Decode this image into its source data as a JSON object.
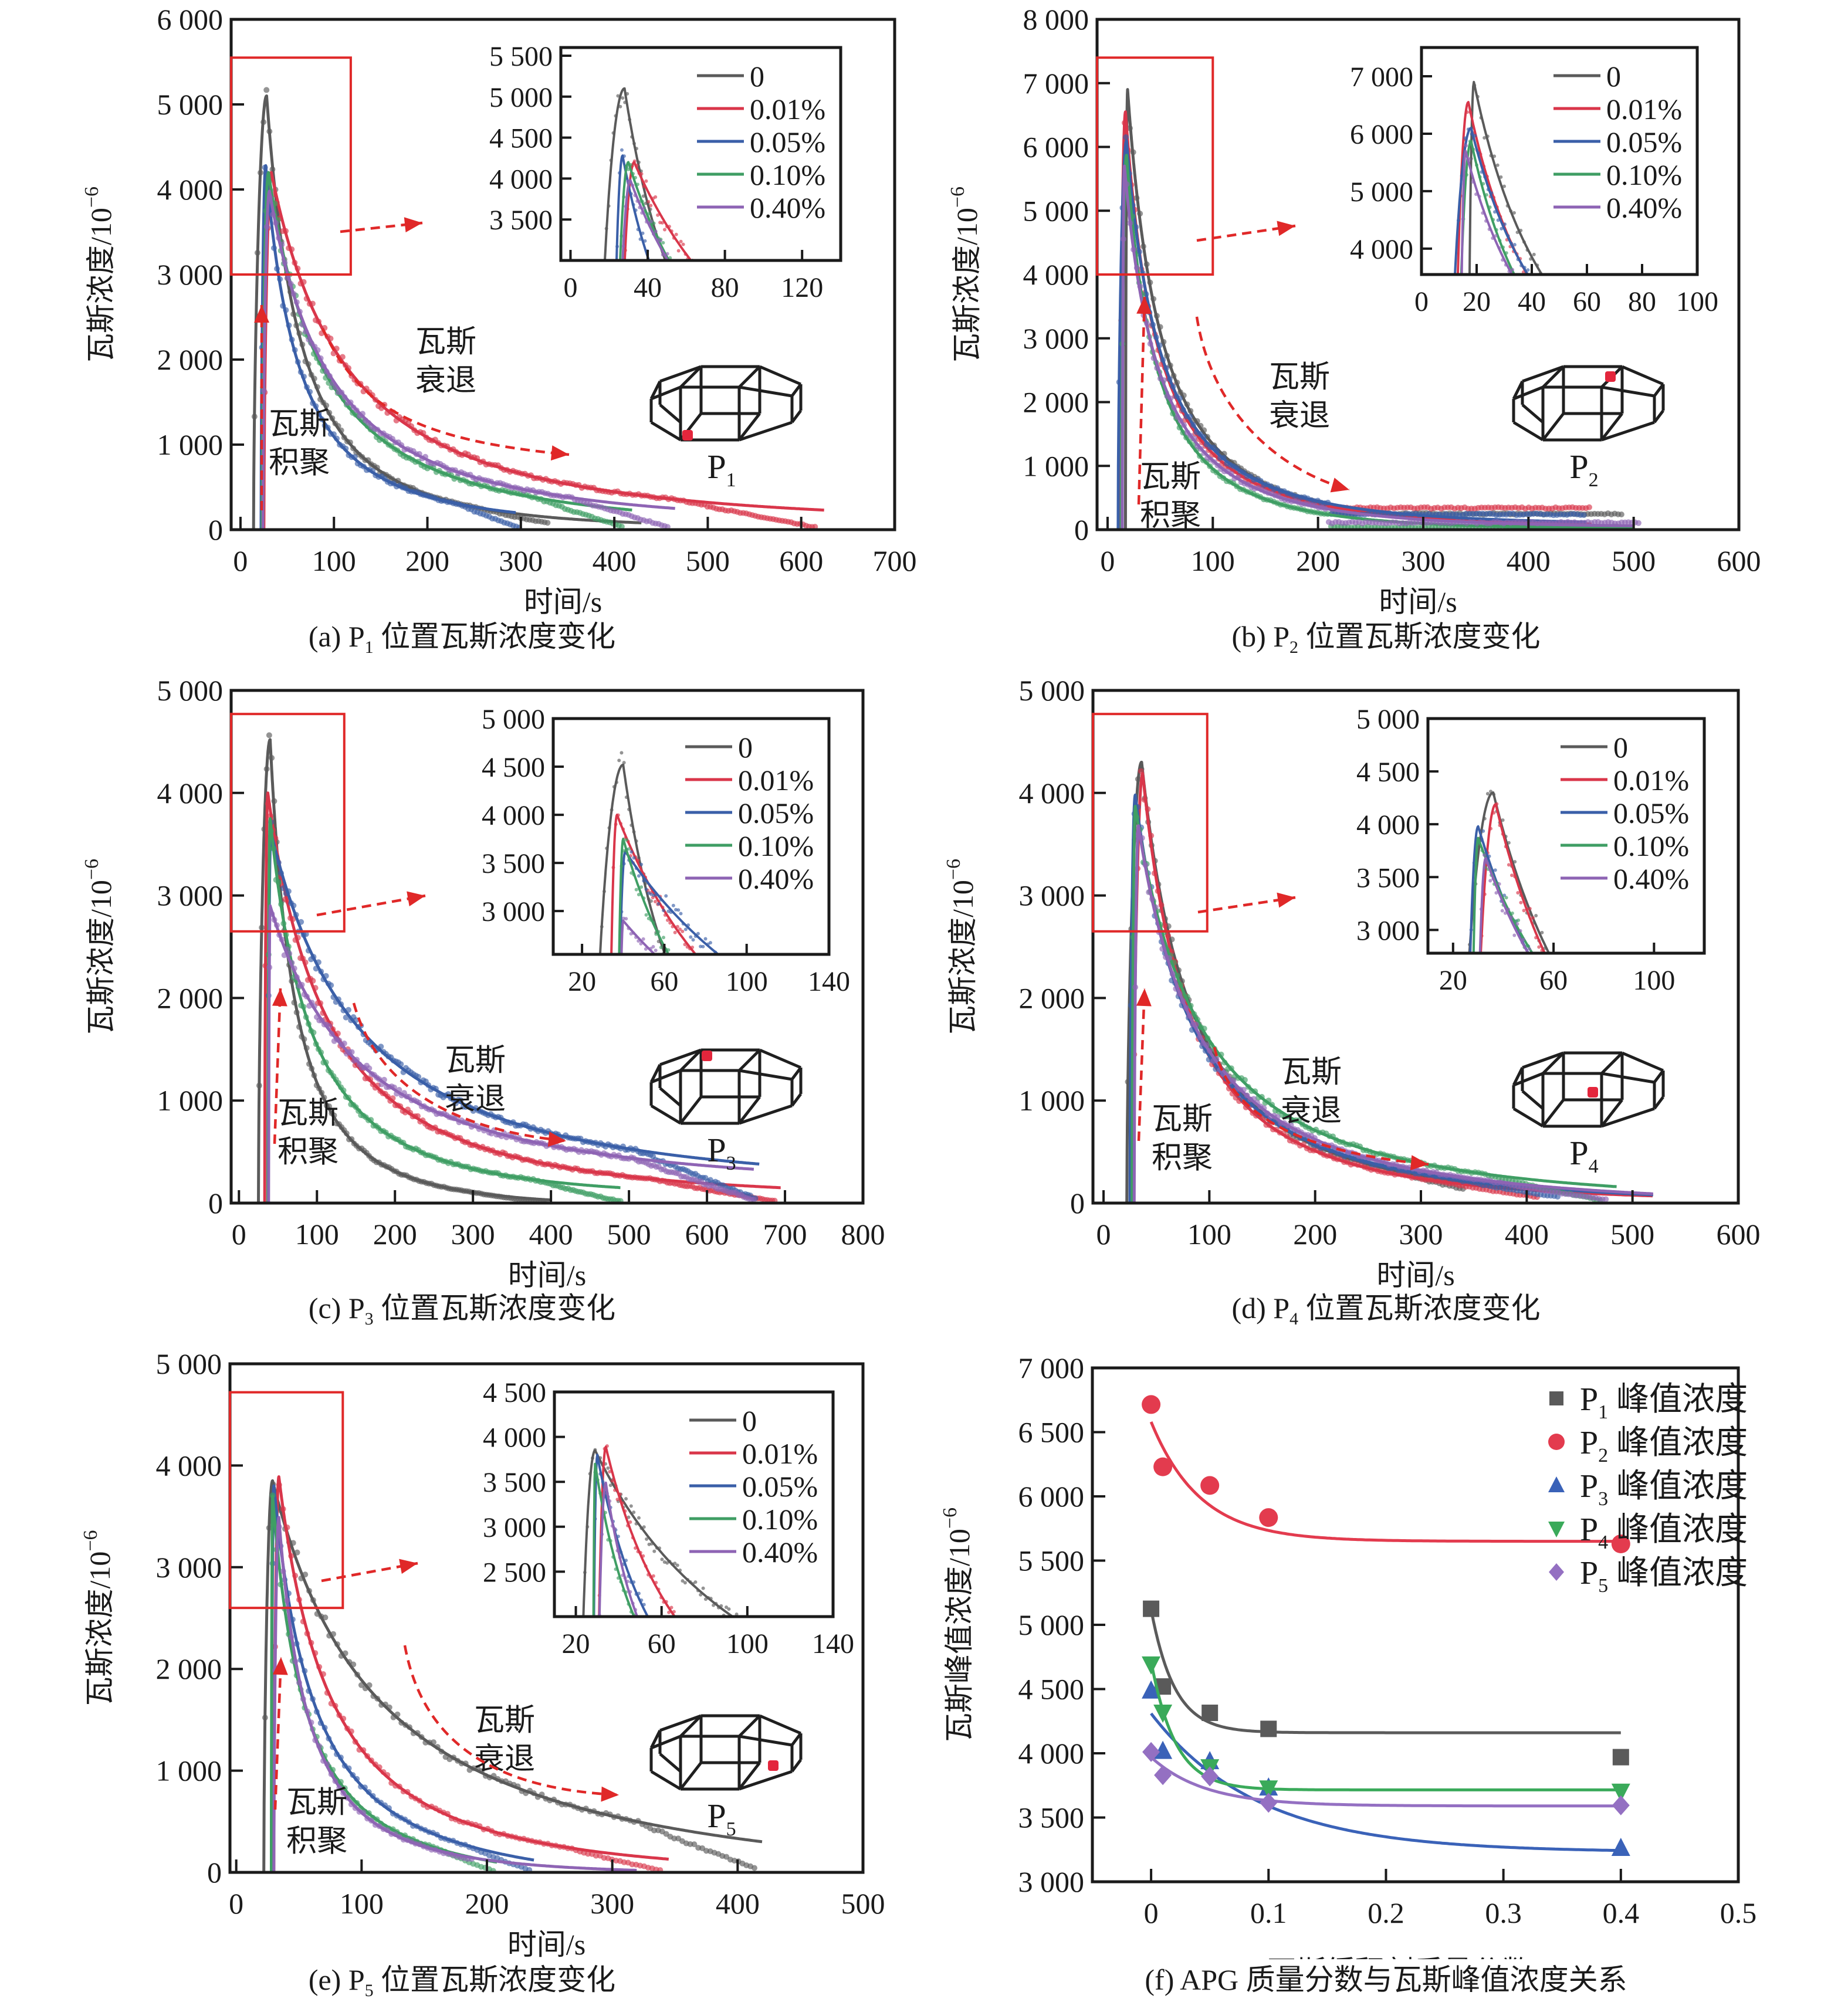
{
  "figure": {
    "panel_order": [
      "a",
      "b",
      "c",
      "d",
      "e",
      "f"
    ]
  },
  "colors": {
    "0": "#5a5a5a",
    "0.01%": "#d9364a",
    "0.05%": "#3a5fa8",
    "0.10%": "#3f9e64",
    "0.40%": "#8e64b4",
    "zoom_box": "#e02828",
    "arrow": "#e02828",
    "axis": "#1a1a1a"
  },
  "chart_data": [
    {
      "id": "a",
      "type": "line",
      "caption_prefix": "(a) P",
      "caption_sub": "1",
      "caption_suffix": " 位置瓦斯浓度变化",
      "xlabel": "时间/s",
      "ylabel": "瓦斯浓度/10⁻⁶",
      "xlim": [
        -10,
        700
      ],
      "ylim": [
        0,
        6000
      ],
      "xticks": [
        0,
        100,
        200,
        300,
        400,
        500,
        600,
        700
      ],
      "yticks": [
        0,
        1000,
        2000,
        3000,
        4000,
        5000,
        6000
      ],
      "ytick_labels": [
        "0",
        "1 000",
        "2 000",
        "3 000",
        "4 000",
        "5 000",
        "6 000"
      ],
      "zoom_box": {
        "x": [
          -10,
          118
        ],
        "y": [
          3000,
          5550
        ]
      },
      "annotations": {
        "accumulate": [
          "瓦斯",
          "积聚"
        ],
        "decay": [
          "瓦斯",
          "衰退"
        ]
      },
      "location_label": "P",
      "location_sub": "1",
      "location_point": "bottom-front-left",
      "series": [
        {
          "name": "0",
          "start": 14,
          "peak_t": 28,
          "peak": 5100,
          "end_t": 430,
          "end": 80,
          "k": 0.0155,
          "data_end_t": 330
        },
        {
          "name": "0.01%",
          "start": 25,
          "peak_t": 33,
          "peak": 4200,
          "end_t": 625,
          "end": 230,
          "k": 0.0068,
          "data_end_t": 615
        },
        {
          "name": "0.05%",
          "start": 22,
          "peak_t": 27,
          "peak": 4280,
          "end_t": 295,
          "end": 200,
          "k": 0.0155,
          "data_end_t": 300
        },
        {
          "name": "0.10%",
          "start": 23,
          "peak_t": 30,
          "peak": 4200,
          "end_t": 420,
          "end": 230,
          "k": 0.0095,
          "data_end_t": 410
        },
        {
          "name": "0.40%",
          "start": 24,
          "peak_t": 31,
          "peak": 3980,
          "end_t": 465,
          "end": 250,
          "k": 0.0085,
          "data_end_t": 460
        }
      ],
      "inset": {
        "xlim": [
          -5,
          140
        ],
        "ylim": [
          3000,
          5600
        ],
        "xticks": [
          0,
          40,
          80,
          120
        ],
        "yticks": [
          3500,
          4000,
          4500,
          5000,
          5500
        ],
        "ytick_labels": [
          "3 500",
          "4 000",
          "4 500",
          "5 000",
          "5 500"
        ],
        "legend": [
          "0",
          "0.01%",
          "0.05%",
          "0.10%",
          "0.40%"
        ]
      }
    },
    {
      "id": "b",
      "type": "line",
      "caption_prefix": "(b) P",
      "caption_sub": "2",
      "caption_suffix": " 位置瓦斯浓度变化",
      "xlabel": "时间/s",
      "ylabel": "瓦斯浓度/10⁻⁶",
      "xlim": [
        -10,
        600
      ],
      "ylim": [
        0,
        8000
      ],
      "xticks": [
        0,
        100,
        200,
        300,
        400,
        500,
        600
      ],
      "yticks": [
        0,
        1000,
        2000,
        3000,
        4000,
        5000,
        6000,
        7000,
        8000
      ],
      "ytick_labels": [
        "0",
        "1 000",
        "2 000",
        "3 000",
        "4 000",
        "5 000",
        "6 000",
        "7 000",
        "8 000"
      ],
      "zoom_box": {
        "x": [
          -10,
          100
        ],
        "y": [
          4000,
          7400
        ]
      },
      "annotations": {
        "accumulate": [
          "瓦斯",
          "积聚"
        ],
        "decay": [
          "瓦斯",
          "衰退"
        ]
      },
      "location_label": "P",
      "location_sub": "2",
      "location_point": "top-center",
      "series": [
        {
          "name": "0",
          "start": 17,
          "peak_t": 19,
          "peak": 6900,
          "end_t": 490,
          "end": 30,
          "k": 0.0175,
          "data_end_t": 490,
          "plateau": 250
        },
        {
          "name": "0.01%",
          "start": 12,
          "peak_t": 17,
          "peak": 6550,
          "end_t": 460,
          "end": 90,
          "k": 0.0185,
          "data_end_t": 460,
          "plateau": 340
        },
        {
          "name": "0.05%",
          "start": 10,
          "peak_t": 18,
          "peak": 6100,
          "end_t": 455,
          "end": 120,
          "k": 0.0165,
          "data_end_t": 455,
          "plateau": 240
        },
        {
          "name": "0.10%",
          "start": 13,
          "peak_t": 18,
          "peak": 5870,
          "end_t": 500,
          "end": 20,
          "k": 0.0195,
          "data_end_t": 500,
          "plateau": 40
        },
        {
          "name": "0.40%",
          "start": 14,
          "peak_t": 16,
          "peak": 5700,
          "end_t": 500,
          "end": 60,
          "k": 0.017,
          "data_end_t": 505,
          "plateau": 110
        }
      ],
      "inset": {
        "xlim": [
          0,
          100
        ],
        "ylim": [
          3550,
          7500
        ],
        "xticks": [
          0,
          20,
          40,
          60,
          80,
          100
        ],
        "yticks": [
          4000,
          5000,
          6000,
          7000
        ],
        "ytick_labels": [
          "4 000",
          "5 000",
          "6 000",
          "7 000"
        ],
        "legend": [
          "0",
          "0.01%",
          "0.05%",
          "0.10%",
          "0.40%"
        ]
      }
    },
    {
      "id": "c",
      "type": "line",
      "caption_prefix": "(c) P",
      "caption_sub": "3",
      "caption_suffix": " 位置瓦斯浓度变化",
      "xlabel": "时间/s",
      "ylabel": "瓦斯浓度/10⁻⁶",
      "xlim": [
        -10,
        800
      ],
      "ylim": [
        0,
        5000
      ],
      "xticks": [
        0,
        100,
        200,
        300,
        400,
        500,
        600,
        700,
        800
      ],
      "yticks": [
        0,
        1000,
        2000,
        3000,
        4000,
        5000
      ],
      "ytick_labels": [
        "0",
        "1 000",
        "2 000",
        "3 000",
        "4 000",
        "5 000"
      ],
      "zoom_box": {
        "x": [
          -10,
          135
        ],
        "y": [
          2650,
          4770
        ]
      },
      "annotations": {
        "accumulate": [
          "瓦斯",
          "积聚"
        ],
        "decay": [
          "瓦斯",
          "衰退"
        ]
      },
      "location_label": "P",
      "location_sub": "3",
      "location_point": "top-back-left",
      "series": [
        {
          "name": "0",
          "start": 25,
          "peak_t": 40,
          "peak": 4520,
          "end_t": 400,
          "end": 30,
          "k": 0.0175,
          "data_end_t": 395
        },
        {
          "name": "0.01%",
          "start": 33,
          "peak_t": 37,
          "peak": 4000,
          "end_t": 695,
          "end": 150,
          "k": 0.0072,
          "data_end_t": 690
        },
        {
          "name": "0.05%",
          "start": 37,
          "peak_t": 41,
          "peak": 3620,
          "end_t": 668,
          "end": 380,
          "k": 0.0048,
          "data_end_t": 665
        },
        {
          "name": "0.10%",
          "start": 37,
          "peak_t": 40,
          "peak": 3750,
          "end_t": 490,
          "end": 150,
          "k": 0.0105,
          "data_end_t": 490
        },
        {
          "name": "0.40%",
          "start": 38,
          "peak_t": 40,
          "peak": 2900,
          "end_t": 660,
          "end": 330,
          "k": 0.0048,
          "data_end_t": 660
        }
      ],
      "inset": {
        "xlim": [
          6,
          140
        ],
        "ylim": [
          2550,
          5000
        ],
        "xticks": [
          20,
          60,
          100,
          140
        ],
        "yticks": [
          3000,
          3500,
          4000,
          4500,
          5000
        ],
        "ytick_labels": [
          "3 000",
          "3 500",
          "4 000",
          "4 500",
          "5 000"
        ],
        "legend": [
          "0",
          "0.01%",
          "0.05%",
          "0.10%",
          "0.40%"
        ]
      }
    },
    {
      "id": "d",
      "type": "line",
      "caption_prefix": "(d) P",
      "caption_sub": "4",
      "caption_suffix": " 位置瓦斯浓度变化",
      "xlabel": "时间/s",
      "ylabel": "瓦斯浓度/10⁻⁶",
      "xlim": [
        -10,
        600
      ],
      "ylim": [
        0,
        5000
      ],
      "xticks": [
        0,
        100,
        200,
        300,
        400,
        500,
        600
      ],
      "yticks": [
        0,
        1000,
        2000,
        3000,
        4000,
        5000
      ],
      "ytick_labels": [
        "0",
        "1 000",
        "2 000",
        "3 000",
        "4 000",
        "5 000"
      ],
      "zoom_box": {
        "x": [
          -10,
          98
        ],
        "y": [
          2650,
          4770
        ]
      },
      "annotations": {
        "accumulate": [
          "瓦斯",
          "积聚"
        ],
        "decay": [
          "瓦斯",
          "衰退"
        ]
      },
      "location_label": "P",
      "location_sub": "4",
      "location_point": "center",
      "series": [
        {
          "name": "0",
          "start": 22,
          "peak_t": 36,
          "peak": 4300,
          "end_t": 520,
          "end": 80,
          "k": 0.0118,
          "data_end_t": 340
        },
        {
          "name": "0.01%",
          "start": 28,
          "peak_t": 37,
          "peak": 4190,
          "end_t": 520,
          "end": 70,
          "k": 0.0125,
          "data_end_t": 410
        },
        {
          "name": "0.05%",
          "start": 25,
          "peak_t": 30,
          "peak": 3980,
          "end_t": 520,
          "end": 80,
          "k": 0.0105,
          "data_end_t": 430
        },
        {
          "name": "0.10%",
          "start": 27,
          "peak_t": 30,
          "peak": 3870,
          "end_t": 485,
          "end": 160,
          "k": 0.009,
          "data_end_t": 470
        },
        {
          "name": "0.40%",
          "start": 29,
          "peak_t": 33,
          "peak": 3680,
          "end_t": 520,
          "end": 90,
          "k": 0.0095,
          "data_end_t": 475
        }
      ],
      "inset": {
        "xlim": [
          10,
          120
        ],
        "ylim": [
          2780,
          5000
        ],
        "xticks": [
          20,
          60,
          100
        ],
        "yticks": [
          3000,
          3500,
          4000,
          4500,
          5000
        ],
        "ytick_labels": [
          "3 000",
          "3 500",
          "4 000",
          "4 500",
          "5 000"
        ],
        "legend": [
          "0",
          "0.01%",
          "0.05%",
          "0.10%",
          "0.40%"
        ]
      }
    },
    {
      "id": "e",
      "type": "line",
      "caption_prefix": "(e) P",
      "caption_sub": "5",
      "caption_suffix": " 位置瓦斯浓度变化",
      "xlabel": "时间/s",
      "ylabel": "瓦斯浓度/10⁻⁶",
      "xlim": [
        -5,
        500
      ],
      "ylim": [
        0,
        5000
      ],
      "xticks": [
        0,
        100,
        200,
        300,
        400,
        500
      ],
      "yticks": [
        0,
        1000,
        2000,
        3000,
        4000,
        5000
      ],
      "ytick_labels": [
        "0",
        "1 000",
        "2 000",
        "3 000",
        "4 000",
        "5 000"
      ],
      "zoom_box": {
        "x": [
          -5,
          85
        ],
        "y": [
          2600,
          4720
        ]
      },
      "annotations": {
        "accumulate": [
          "瓦斯",
          "积聚"
        ],
        "decay": [
          "瓦斯",
          "衰退"
        ]
      },
      "location_label": "P",
      "location_sub": "5",
      "location_point": "mid-right",
      "series": [
        {
          "name": "0",
          "start": 22,
          "peak_t": 29,
          "peak": 3850,
          "end_t": 420,
          "end": 300,
          "k": 0.0068,
          "data_end_t": 415
        },
        {
          "name": "0.01%",
          "start": 30,
          "peak_t": 34,
          "peak": 3890,
          "end_t": 345,
          "end": 130,
          "k": 0.0135,
          "data_end_t": 340
        },
        {
          "name": "0.05%",
          "start": 28,
          "peak_t": 30,
          "peak": 3800,
          "end_t": 238,
          "end": 120,
          "k": 0.0175,
          "data_end_t": 235
        },
        {
          "name": "0.10%",
          "start": 28,
          "peak_t": 29,
          "peak": 3700,
          "end_t": 208,
          "end": 100,
          "k": 0.0215,
          "data_end_t": 205
        },
        {
          "name": "0.40%",
          "start": 30,
          "peak_t": 34,
          "peak": 3490,
          "end_t": 320,
          "end": 20,
          "k": 0.0235,
          "data_end_t": 190
        }
      ],
      "inset": {
        "xlim": [
          10,
          140
        ],
        "ylim": [
          2000,
          4500
        ],
        "xticks": [
          20,
          60,
          100,
          140
        ],
        "yticks": [
          2500,
          3000,
          3500,
          4000,
          4500
        ],
        "ytick_labels": [
          "2 500",
          "3 000",
          "3 500",
          "4 000",
          "4 500"
        ],
        "legend": [
          "0",
          "0.01%",
          "0.05%",
          "0.10%",
          "0.40%"
        ]
      }
    },
    {
      "id": "f",
      "type": "scatter",
      "caption": "(f) APG 质量分数与瓦斯峰值浓度关系",
      "xlabel": "瓦斯缓释剂质量分数/%",
      "ylabel": "瓦斯峰值浓度/10⁻⁶",
      "xlim": [
        -0.05,
        0.5
      ],
      "ylim": [
        3000,
        7000
      ],
      "xticks": [
        0,
        0.1,
        0.2,
        0.3,
        0.4,
        0.5
      ],
      "xtick_labels": [
        "0",
        "0.1",
        "0.2",
        "0.3",
        "0.4",
        "0.5"
      ],
      "yticks": [
        3000,
        3500,
        4000,
        4500,
        5000,
        5500,
        6000,
        6500,
        7000
      ],
      "ytick_labels": [
        "3 000",
        "3 500",
        "4 000",
        "4 500",
        "5 000",
        "5 500",
        "6 000",
        "6 500",
        "7 000"
      ],
      "legend_position": "top-right",
      "x": [
        0,
        0.01,
        0.05,
        0.1,
        0.4
      ],
      "series": [
        {
          "name": "P",
          "sub": "1",
          "suffix": " 峰值浓度",
          "marker": "square",
          "color": "#5a5a5a",
          "values": [
            5125,
            4520,
            4315,
            4190,
            3970
          ],
          "fit": {
            "a": 960,
            "b": 50,
            "c": 4160
          }
        },
        {
          "name": "P",
          "sub": "2",
          "suffix": " 峰值浓度",
          "marker": "circle",
          "color": "#e33b4e",
          "values": [
            6715,
            6230,
            6085,
            5835,
            5630
          ],
          "fit": {
            "a": 930,
            "b": 24,
            "c": 5650
          }
        },
        {
          "name": "P",
          "sub": "3",
          "suffix": " 峰值浓度",
          "marker": "triangle-up",
          "color": "#3a62b8",
          "values": [
            4490,
            4020,
            3940,
            3735,
            3265
          ],
          "fit": {
            "a": 1080,
            "b": 11,
            "c": 3230
          }
        },
        {
          "name": "P",
          "sub": "4",
          "suffix": " 峰值浓度",
          "marker": "triangle-down",
          "color": "#3aaa5a",
          "values": [
            4690,
            4315,
            3890,
            3725,
            3700
          ],
          "fit": {
            "a": 1000,
            "b": 48,
            "c": 3715
          }
        },
        {
          "name": "P",
          "sub": "5",
          "suffix": " 峰值浓度",
          "marker": "diamond",
          "color": "#9470c2",
          "values": [
            4010,
            3830,
            3820,
            3615,
            3595
          ],
          "fit": {
            "a": 380,
            "b": 22,
            "c": 3590
          }
        }
      ]
    }
  ]
}
